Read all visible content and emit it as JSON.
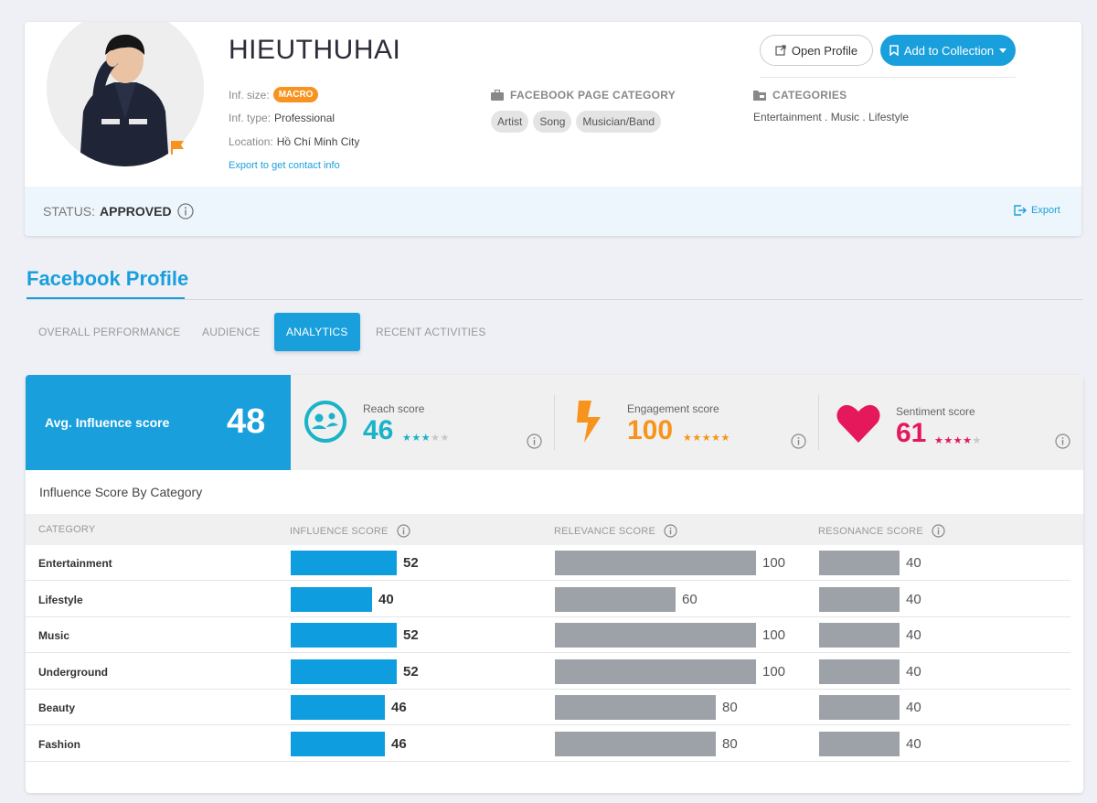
{
  "profile": {
    "name": "HIEUTHUHAI",
    "open_profile": "Open Profile",
    "add_to_collection": "Add to Collection",
    "inf_size_label": "Inf. size:",
    "inf_size_value": "MACRO",
    "inf_type_label": "Inf. type:",
    "inf_type_value": "Professional",
    "location_label": "Location:",
    "location_value": "Hồ Chí Minh City",
    "export_contact": "Export to get contact info",
    "fb_category_heading": "FACEBOOK PAGE CATEGORY",
    "fb_category_tags": [
      "Artist",
      "Song",
      "Musician/Band"
    ],
    "categories_heading": "CATEGORIES",
    "categories_value": "Entertainment . Music . Lifestyle",
    "status_label": "STATUS:",
    "status_value": "APPROVED",
    "export_label": "Export"
  },
  "facebook": {
    "title": "Facebook Profile",
    "tabs": [
      "OVERALL PERFORMANCE",
      "AUDIENCE",
      "ANALYTICS",
      "RECENT ACTIVITIES"
    ],
    "active_tab": "ANALYTICS"
  },
  "scores": {
    "avg_label": "Avg. Influence score",
    "avg_value": "48",
    "reach": {
      "label": "Reach score",
      "value": "46",
      "stars": 3,
      "color": "#1ab3c8"
    },
    "engagement": {
      "label": "Engagement score",
      "value": "100",
      "stars": 5,
      "color": "#f7941d"
    },
    "sentiment": {
      "label": "Sentiment score",
      "value": "61",
      "stars": 4,
      "color": "#e4185b"
    }
  },
  "table": {
    "title": "Influence Score By Category",
    "headers": [
      "CATEGORY",
      "INFLUENCE SCORE",
      "RELEVANCE SCORE",
      "RESONANCE SCORE"
    ],
    "rows": [
      {
        "category": "Entertainment",
        "influence": 52,
        "relevance": 100,
        "resonance": 40
      },
      {
        "category": "Lifestyle",
        "influence": 40,
        "relevance": 60,
        "resonance": 40
      },
      {
        "category": "Music",
        "influence": 52,
        "relevance": 100,
        "resonance": 40
      },
      {
        "category": "Underground",
        "influence": 52,
        "relevance": 100,
        "resonance": 40
      },
      {
        "category": "Beauty",
        "influence": 46,
        "relevance": 80,
        "resonance": 40
      },
      {
        "category": "Fashion",
        "influence": 46,
        "relevance": 80,
        "resonance": 40
      }
    ]
  },
  "colors": {
    "accent": "#1a9fdd",
    "macro": "#f7931e",
    "bar_blue": "#0e9ee0",
    "bar_gray": "#9da1a8"
  },
  "icons": [
    "flag-icon",
    "external-link-icon",
    "bookmark-icon",
    "caret-down-icon",
    "briefcase-icon",
    "folder-icon",
    "info-icon",
    "export-icon",
    "reach-icon",
    "lightning-icon",
    "heart-icon",
    "star-icon"
  ]
}
